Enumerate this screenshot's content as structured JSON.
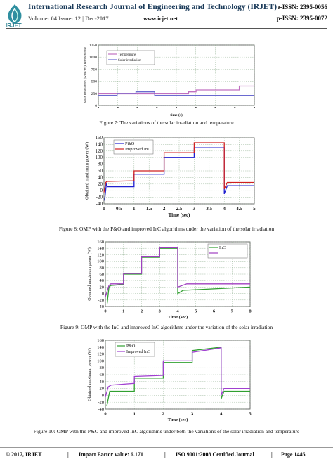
{
  "header": {
    "journal_title": "International Research Journal of Engineering and Technology (IRJET)",
    "logo_text": "IRJET",
    "volume": "Volume: 04 Issue: 12 | Dec-2017",
    "website": "www.irjet.net",
    "eissn": "e-ISSN: 2395-0056",
    "pissn": "p-ISSN: 2395-0072"
  },
  "figures": [
    {
      "caption": "Figure 7: The variations of the solar irradiation and temperature"
    },
    {
      "caption": "Figure 8: OMP with the P&O and improved InC algorithms under the variation of the solar irradiation"
    },
    {
      "caption": "Figure 9: OMP with the InC and improved InC algorithms under the variation of the solar irradiation"
    },
    {
      "caption": "Figure 10: OMP with the P&O and improved InC algorithms under both the variations of the solar irradiation and temperature"
    }
  ],
  "chart_data": [
    {
      "type": "line",
      "ylabel": "Solar Irradiation (G:W/m²)/Temperature",
      "xlabel": "time (s)",
      "ylim": [
        0,
        1250
      ],
      "yticks": [
        "0",
        "250",
        "500",
        "750",
        "1000",
        "1250"
      ],
      "legend": [
        "Temperature",
        "Solar irradiation"
      ],
      "legend_position": "top-left",
      "series": [
        {
          "name": "Temperature",
          "x": [
            0,
            4.8,
            4.8,
            5.2,
            5.2,
            7.5,
            7.5,
            8.3
          ],
          "values": [
            240,
            240,
            280,
            280,
            320,
            320,
            400,
            400
          ],
          "color": "#c070c0"
        },
        {
          "name": "Solar irradiation",
          "x": [
            0,
            1,
            1,
            2,
            2,
            3,
            3,
            8.3
          ],
          "values": [
            210,
            210,
            250,
            250,
            280,
            280,
            210,
            210
          ],
          "color": "#6a6ad0"
        }
      ]
    },
    {
      "type": "line",
      "ylabel": "Obtained maximum power (W)",
      "xlabel": "Time (sec)",
      "xlim": [
        0,
        5
      ],
      "ylim": [
        -40,
        160
      ],
      "xticks": [
        "0",
        "0.5",
        "1",
        "1.5",
        "2",
        "2.5",
        "3",
        "3.5",
        "4",
        "4.5",
        "5"
      ],
      "yticks": [
        "-40",
        "-20",
        "0",
        "20",
        "40",
        "60",
        "80",
        "100",
        "120",
        "140",
        "160"
      ],
      "legend": [
        "P&O",
        "Improved InC"
      ],
      "legend_position": "top-left",
      "series": [
        {
          "name": "P&O",
          "color": "#2020d0",
          "x": [
            0.02,
            0.08,
            0.12,
            0.12,
            1,
            1,
            2,
            2,
            3,
            3,
            4,
            4,
            4.1,
            5
          ],
          "values": [
            -30,
            20,
            12,
            12,
            12,
            50,
            50,
            100,
            100,
            130,
            130,
            -10,
            15,
            15
          ]
        },
        {
          "name": "Improved InC",
          "color": "#d02020",
          "x": [
            0,
            0.06,
            0.1,
            1,
            1,
            2,
            2,
            3,
            3,
            4,
            4,
            4.1,
            5
          ],
          "values": [
            -5,
            25,
            28,
            30,
            60,
            60,
            115,
            115,
            145,
            145,
            5,
            25,
            25
          ]
        }
      ]
    },
    {
      "type": "line",
      "ylabel": "Obtained maximum power (W)",
      "xlabel": "Time (sec)",
      "xlim": [
        0,
        8
      ],
      "ylim": [
        -40,
        160
      ],
      "xticks": [
        "0",
        "1",
        "2",
        "3",
        "4",
        "5",
        "6",
        "7",
        "8"
      ],
      "yticks": [
        "-40",
        "-20",
        "0",
        "20",
        "40",
        "60",
        "80",
        "100",
        "120",
        "140",
        "160"
      ],
      "legend": [
        "InC",
        ""
      ],
      "legend_position": "top-right",
      "series": [
        {
          "name": "InC",
          "color": "#30a030",
          "x": [
            0.1,
            0.2,
            0.3,
            1,
            1,
            2,
            2,
            3,
            3,
            4,
            4,
            4.3,
            8
          ],
          "values": [
            -30,
            20,
            25,
            28,
            60,
            60,
            112,
            112,
            140,
            140,
            0,
            10,
            20
          ]
        },
        {
          "name": "",
          "color": "#a040c0",
          "x": [
            0,
            0.2,
            0.3,
            1,
            1,
            2,
            2,
            3,
            3,
            4,
            4,
            4.5,
            8
          ],
          "values": [
            -10,
            25,
            30,
            30,
            62,
            62,
            115,
            115,
            142,
            142,
            20,
            30,
            30
          ]
        }
      ]
    },
    {
      "type": "line",
      "ylabel": "Obtained maximum power (W)",
      "xlabel": "Time (sec)",
      "xlim": [
        0,
        5
      ],
      "ylim": [
        -40,
        160
      ],
      "xticks": [
        "0",
        "1",
        "2",
        "3",
        "4",
        "5"
      ],
      "yticks": [
        "-40",
        "-20",
        "0",
        "20",
        "40",
        "60",
        "80",
        "100",
        "120",
        "140",
        "160"
      ],
      "legend": [
        "P&O",
        "Improved InC"
      ],
      "legend_position": "top-left",
      "series": [
        {
          "name": "P&O",
          "color": "#30a030",
          "x": [
            0.05,
            0.15,
            0.3,
            1,
            1,
            2,
            2,
            3,
            3,
            4,
            4,
            4.1,
            5
          ],
          "values": [
            -30,
            12,
            12,
            12,
            50,
            50,
            95,
            95,
            130,
            140,
            -10,
            12,
            12
          ]
        },
        {
          "name": "Improved InC",
          "color": "#a040d0",
          "x": [
            0,
            0.1,
            0.2,
            1,
            1,
            2,
            2,
            3,
            3,
            4,
            4,
            4.1,
            5
          ],
          "values": [
            -5,
            25,
            30,
            35,
            55,
            58,
            100,
            100,
            125,
            138,
            0,
            20,
            20
          ]
        }
      ]
    }
  ],
  "footer": {
    "copyright": "© 2017, IRJET",
    "impact": "Impact Factor value: 6.171",
    "iso": "ISO 9001:2008 Certified Journal",
    "page": "Page 1446"
  }
}
